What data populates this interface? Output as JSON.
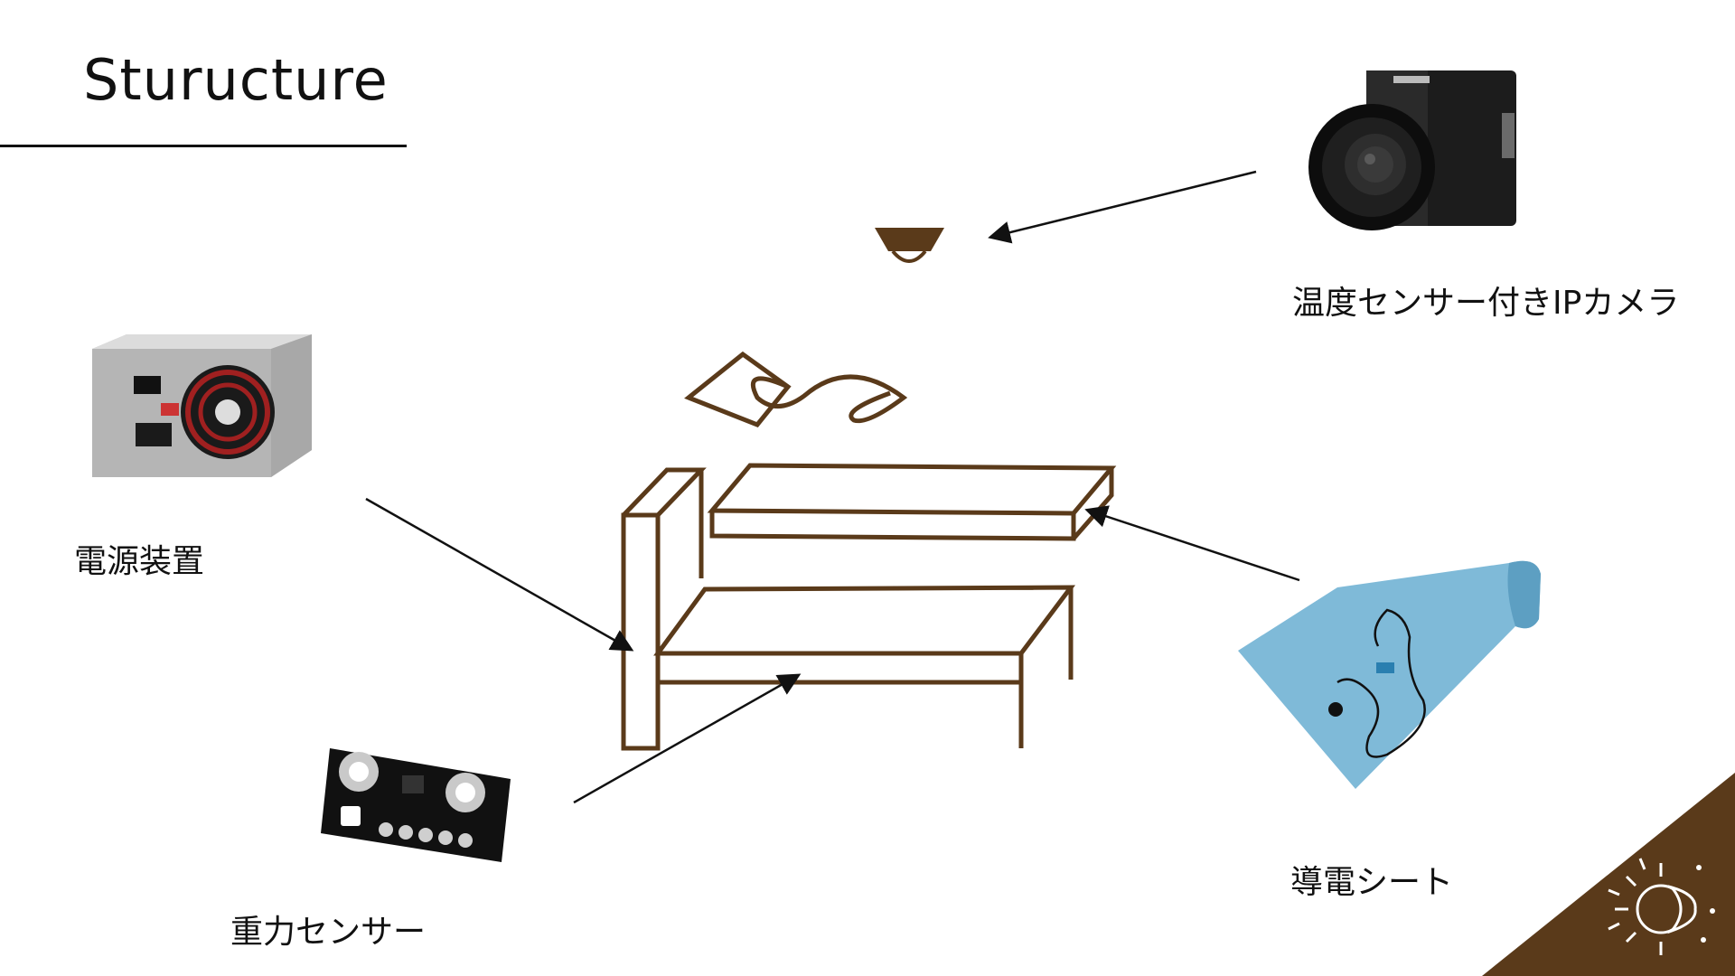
{
  "title": "Sturucture",
  "labels": {
    "camera": "温度センサー付きIPカメラ",
    "power": "電源装置",
    "gravity": "重力センサー",
    "mat": "導電シート"
  },
  "colors": {
    "accent": "#5a3a1a",
    "line": "#111111"
  },
  "icons": {
    "corner": "moon-sun-icon"
  }
}
